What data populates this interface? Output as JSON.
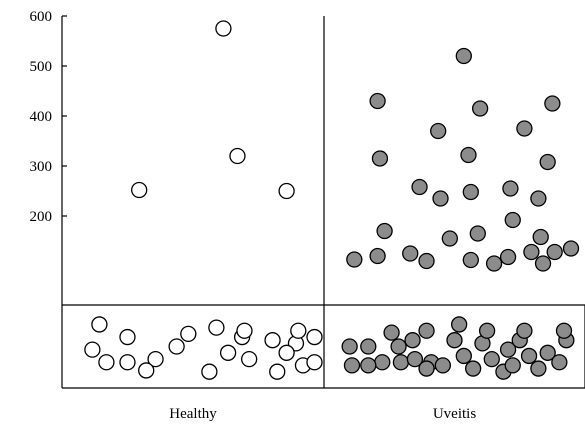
{
  "chart_data": {
    "type": "scatter",
    "title": "",
    "xlabel": "",
    "ylabel": "",
    "ylim": [
      0,
      600
    ],
    "y_ticks": [
      {
        "value": 200,
        "label": "200"
      },
      {
        "value": 300,
        "label": "300"
      },
      {
        "value": 400,
        "label": "400"
      },
      {
        "value": 500,
        "label": "500"
      },
      {
        "value": 600,
        "label": "600"
      }
    ],
    "grid": false,
    "legend": "none",
    "colors": {
      "axis": "#000000",
      "healthy_fill": "#ffffff",
      "uveitis_fill": "#8c8c8c",
      "marker_edge": "#000000"
    },
    "groups": [
      {
        "name": "Healthy",
        "marker_fill": "#ffffff",
        "high_values": [
          {
            "x": 0.27,
            "y": 252
          },
          {
            "x": 0.63,
            "y": 575
          },
          {
            "x": 0.69,
            "y": 320
          },
          {
            "x": 0.9,
            "y": 250
          }
        ],
        "low_values": [
          {
            "x": 0.1,
            "y": 0.85
          },
          {
            "x": 0.22,
            "y": 0.65
          },
          {
            "x": 0.34,
            "y": 0.3
          },
          {
            "x": 0.48,
            "y": 0.7
          },
          {
            "x": 0.6,
            "y": 0.8
          },
          {
            "x": 0.71,
            "y": 0.65
          },
          {
            "x": 0.72,
            "y": 0.75
          },
          {
            "x": 0.84,
            "y": 0.6
          },
          {
            "x": 0.94,
            "y": 0.55
          },
          {
            "x": 0.07,
            "y": 0.45
          },
          {
            "x": 0.13,
            "y": 0.25
          },
          {
            "x": 0.22,
            "y": 0.25
          },
          {
            "x": 0.3,
            "y": 0.12
          },
          {
            "x": 0.43,
            "y": 0.5
          },
          {
            "x": 0.57,
            "y": 0.1
          },
          {
            "x": 0.65,
            "y": 0.4
          },
          {
            "x": 0.74,
            "y": 0.3
          },
          {
            "x": 0.86,
            "y": 0.1
          },
          {
            "x": 0.9,
            "y": 0.4
          },
          {
            "x": 0.97,
            "y": 0.2
          },
          {
            "x": 1.05,
            "y": 0.25
          },
          {
            "x": 1.06,
            "y": 0.65
          },
          {
            "x": 0.95,
            "y": 0.75
          }
        ]
      },
      {
        "name": "Uveitis",
        "marker_fill": "#8c8c8c",
        "high_values": [
          {
            "x": 0.07,
            "y": 113
          },
          {
            "x": 0.17,
            "y": 120
          },
          {
            "x": 0.2,
            "y": 170
          },
          {
            "x": 0.18,
            "y": 315
          },
          {
            "x": 0.17,
            "y": 430
          },
          {
            "x": 0.31,
            "y": 125
          },
          {
            "x": 0.38,
            "y": 110
          },
          {
            "x": 0.35,
            "y": 258
          },
          {
            "x": 0.44,
            "y": 235
          },
          {
            "x": 0.43,
            "y": 370
          },
          {
            "x": 0.48,
            "y": 155
          },
          {
            "x": 0.57,
            "y": 112
          },
          {
            "x": 0.57,
            "y": 248
          },
          {
            "x": 0.56,
            "y": 322
          },
          {
            "x": 0.6,
            "y": 165
          },
          {
            "x": 0.61,
            "y": 415
          },
          {
            "x": 0.54,
            "y": 520
          },
          {
            "x": 0.67,
            "y": 105
          },
          {
            "x": 0.73,
            "y": 118
          },
          {
            "x": 0.74,
            "y": 255
          },
          {
            "x": 0.75,
            "y": 192
          },
          {
            "x": 0.8,
            "y": 375
          },
          {
            "x": 0.83,
            "y": 128
          },
          {
            "x": 0.88,
            "y": 105
          },
          {
            "x": 0.87,
            "y": 158
          },
          {
            "x": 0.86,
            "y": 235
          },
          {
            "x": 0.9,
            "y": 308
          },
          {
            "x": 0.93,
            "y": 128
          },
          {
            "x": 0.92,
            "y": 425
          },
          {
            "x": 1.0,
            "y": 135
          }
        ],
        "low_values": [
          {
            "x": 0.05,
            "y": 0.5
          },
          {
            "x": 0.13,
            "y": 0.5
          },
          {
            "x": 0.19,
            "y": 0.25
          },
          {
            "x": 0.23,
            "y": 0.72
          },
          {
            "x": 0.27,
            "y": 0.25
          },
          {
            "x": 0.32,
            "y": 0.6
          },
          {
            "x": 0.06,
            "y": 0.2
          },
          {
            "x": 0.13,
            "y": 0.2
          },
          {
            "x": 0.26,
            "y": 0.5
          },
          {
            "x": 0.33,
            "y": 0.3
          },
          {
            "x": 0.4,
            "y": 0.25
          },
          {
            "x": 0.45,
            "y": 0.2
          },
          {
            "x": 0.5,
            "y": 0.6
          },
          {
            "x": 0.54,
            "y": 0.35
          },
          {
            "x": 0.58,
            "y": 0.15
          },
          {
            "x": 0.62,
            "y": 0.55
          },
          {
            "x": 0.66,
            "y": 0.3
          },
          {
            "x": 0.71,
            "y": 0.1
          },
          {
            "x": 0.73,
            "y": 0.45
          },
          {
            "x": 0.78,
            "y": 0.6
          },
          {
            "x": 0.82,
            "y": 0.35
          },
          {
            "x": 0.86,
            "y": 0.15
          },
          {
            "x": 0.9,
            "y": 0.4
          },
          {
            "x": 0.95,
            "y": 0.25
          },
          {
            "x": 0.98,
            "y": 0.6
          },
          {
            "x": 0.38,
            "y": 0.75
          },
          {
            "x": 0.52,
            "y": 0.85
          },
          {
            "x": 0.64,
            "y": 0.75
          },
          {
            "x": 0.75,
            "y": 0.2
          },
          {
            "x": 0.8,
            "y": 0.75
          },
          {
            "x": 0.97,
            "y": 0.75
          },
          {
            "x": 0.38,
            "y": 0.15
          }
        ]
      }
    ]
  }
}
